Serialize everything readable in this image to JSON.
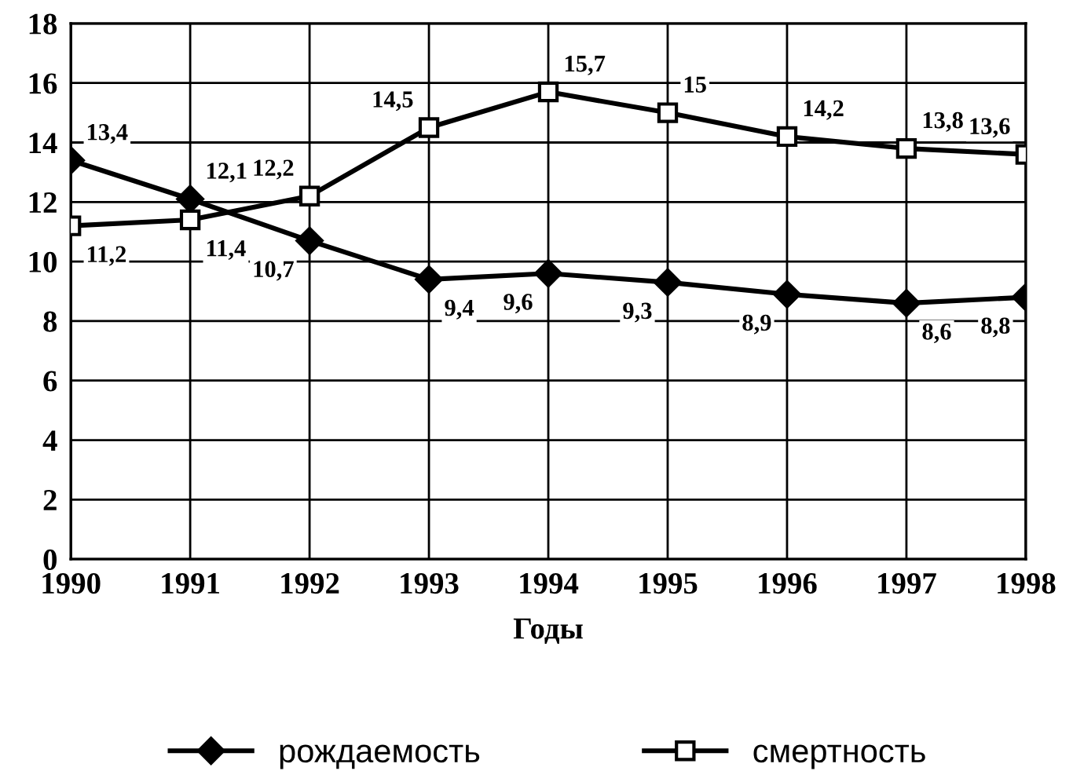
{
  "chart_data": {
    "type": "line",
    "xlabel": "Годы",
    "categories": [
      "1990",
      "1991",
      "1992",
      "1993",
      "1994",
      "1995",
      "1996",
      "1997",
      "1998"
    ],
    "series": [
      {
        "name": "рождаемость",
        "color": "#000000",
        "marker": "diamond",
        "values": [
          13.4,
          12.1,
          10.7,
          9.4,
          9.6,
          9.3,
          8.9,
          8.6,
          8.8
        ],
        "value_labels": [
          "13,4",
          "12,1",
          "10,7",
          "9,4",
          "9,6",
          "9,3",
          "8,9",
          "8,6",
          "8,8"
        ]
      },
      {
        "name": "смертность",
        "color": "#000000",
        "marker": "square",
        "values": [
          11.2,
          11.4,
          12.2,
          14.5,
          15.7,
          15,
          14.2,
          13.8,
          13.6
        ],
        "value_labels": [
          "11,2",
          "11,4",
          "12,2",
          "14,5",
          "15,7",
          "15",
          "14,2",
          "13,8",
          "13,6"
        ]
      }
    ],
    "ylim": [
      0,
      18
    ],
    "yticks": [
      0,
      2,
      4,
      6,
      8,
      10,
      12,
      14,
      16,
      18
    ],
    "grid": true,
    "legend": "bottom",
    "line_style": "solid"
  }
}
